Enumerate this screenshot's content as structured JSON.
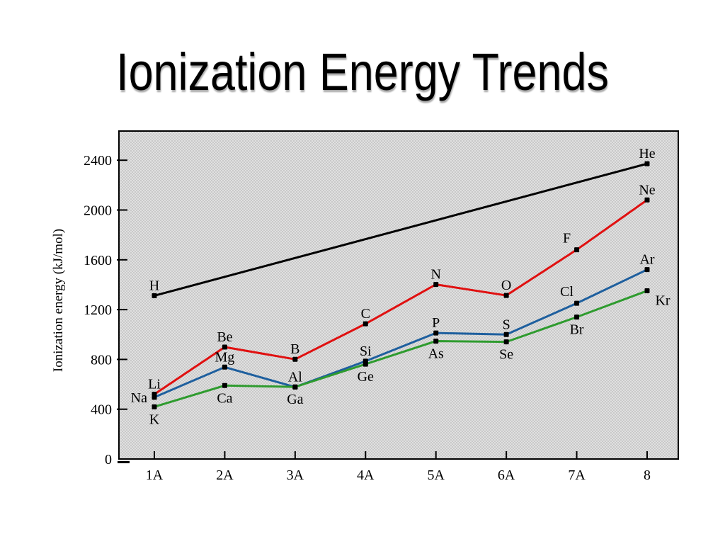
{
  "slide": {
    "title": "Ionization Energy Trends"
  },
  "chart_data": {
    "type": "line",
    "title": "Ionization Energy Trends",
    "xlabel": "",
    "ylabel": "Ionization energy (kJ/mol)",
    "x_categories": [
      "1A",
      "2A",
      "3A",
      "4A",
      "5A",
      "6A",
      "7A",
      "8"
    ],
    "yticks": [
      0,
      400,
      800,
      1200,
      1600,
      2000,
      2400
    ],
    "ylim": [
      0,
      2600
    ],
    "grid": false,
    "legend_position": "none",
    "plot_background": "halftone-gray",
    "colors": {
      "period1": "#000000",
      "period2": "#e01010",
      "period3": "#1e5f9e",
      "period4": "#2e9b2e"
    },
    "marker": "black-square",
    "series": [
      {
        "name": "H-He",
        "color": "#000000",
        "points": [
          {
            "element": "H",
            "group_index": 0,
            "value": 1312,
            "label_pos": "above"
          },
          {
            "element": "He",
            "group_index": 7,
            "value": 2372,
            "label_pos": "above"
          }
        ]
      },
      {
        "name": "Li-Ne",
        "color": "#e01010",
        "points": [
          {
            "element": "Li",
            "group_index": 0,
            "value": 520,
            "label_pos": "above"
          },
          {
            "element": "Be",
            "group_index": 1,
            "value": 899,
            "label_pos": "above"
          },
          {
            "element": "B",
            "group_index": 2,
            "value": 801,
            "label_pos": "above"
          },
          {
            "element": "C",
            "group_index": 3,
            "value": 1086,
            "label_pos": "above"
          },
          {
            "element": "N",
            "group_index": 4,
            "value": 1402,
            "label_pos": "above"
          },
          {
            "element": "O",
            "group_index": 5,
            "value": 1314,
            "label_pos": "above"
          },
          {
            "element": "F",
            "group_index": 6,
            "value": 1681,
            "label_pos": "above-left"
          },
          {
            "element": "Ne",
            "group_index": 7,
            "value": 2081,
            "label_pos": "above"
          }
        ]
      },
      {
        "name": "Na-Ar",
        "color": "#1e5f9e",
        "points": [
          {
            "element": "Na",
            "group_index": 0,
            "value": 496,
            "label_pos": "left"
          },
          {
            "element": "Mg",
            "group_index": 1,
            "value": 738,
            "label_pos": "above"
          },
          {
            "element": "Al",
            "group_index": 2,
            "value": 578,
            "label_pos": "above"
          },
          {
            "element": "Si",
            "group_index": 3,
            "value": 786,
            "label_pos": "above"
          },
          {
            "element": "P",
            "group_index": 4,
            "value": 1012,
            "label_pos": "above"
          },
          {
            "element": "S",
            "group_index": 5,
            "value": 1000,
            "label_pos": "above"
          },
          {
            "element": "Cl",
            "group_index": 6,
            "value": 1251,
            "label_pos": "above-left"
          },
          {
            "element": "Ar",
            "group_index": 7,
            "value": 1521,
            "label_pos": "above"
          }
        ]
      },
      {
        "name": "K-Kr",
        "color": "#2e9b2e",
        "points": [
          {
            "element": "K",
            "group_index": 0,
            "value": 419,
            "label_pos": "below"
          },
          {
            "element": "Ca",
            "group_index": 1,
            "value": 590,
            "label_pos": "below"
          },
          {
            "element": "Ga",
            "group_index": 2,
            "value": 579,
            "label_pos": "below"
          },
          {
            "element": "Ge",
            "group_index": 3,
            "value": 762,
            "label_pos": "below"
          },
          {
            "element": "As",
            "group_index": 4,
            "value": 947,
            "label_pos": "below"
          },
          {
            "element": "Se",
            "group_index": 5,
            "value": 941,
            "label_pos": "below"
          },
          {
            "element": "Br",
            "group_index": 6,
            "value": 1140,
            "label_pos": "below"
          },
          {
            "element": "Kr",
            "group_index": 7,
            "value": 1351,
            "label_pos": "below-right"
          }
        ]
      }
    ]
  }
}
